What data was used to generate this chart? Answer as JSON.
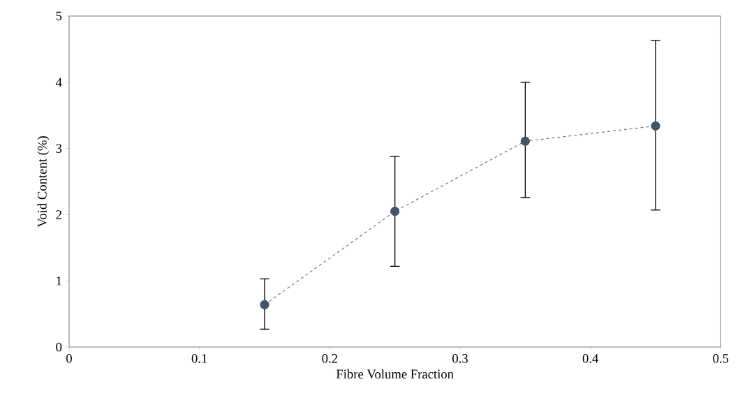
{
  "chart_data": {
    "type": "line",
    "xlabel": "Fibre Volume Fraction",
    "ylabel": "Void Content (%)",
    "x": [
      0.15,
      0.25,
      0.35,
      0.45
    ],
    "series": [
      {
        "color": "#44546a",
        "values": [
          0.64,
          2.05,
          3.11,
          3.34
        ],
        "errors": [
          [
            0.27,
            1.03
          ],
          [
            1.22,
            2.88
          ],
          [
            2.26,
            4.0
          ],
          [
            2.07,
            4.63
          ]
        ]
      }
    ],
    "xlim": [
      0,
      0.5
    ],
    "ylim": [
      0,
      5
    ],
    "xticks": [
      0,
      0.1,
      0.2,
      0.3,
      0.4,
      0.5
    ],
    "yticks": [
      0,
      1,
      2,
      3,
      4,
      5
    ],
    "grid": false,
    "marker": "circle",
    "line_style": "dashed"
  }
}
